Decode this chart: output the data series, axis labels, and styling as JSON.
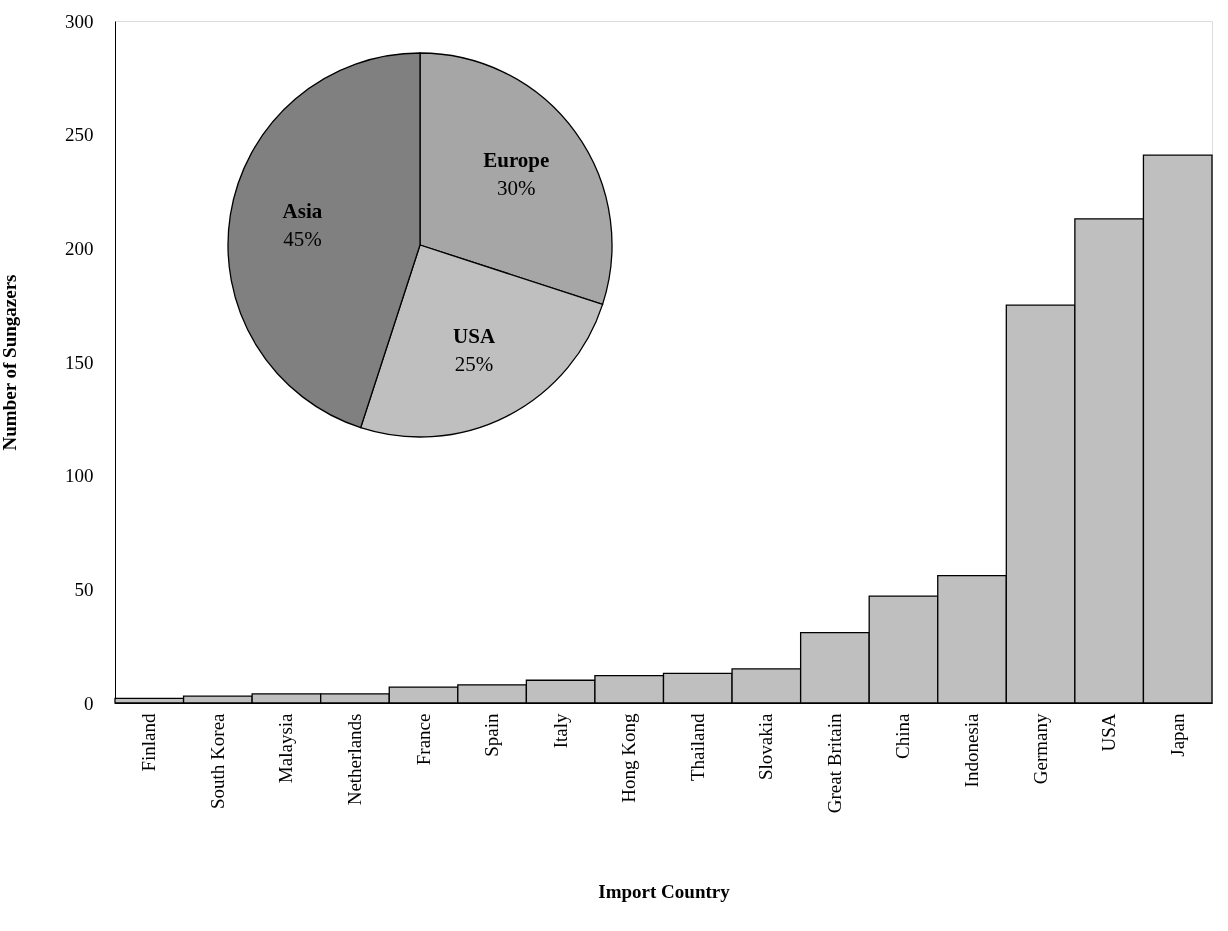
{
  "chart_data": [
    {
      "type": "bar",
      "xlabel": "Import Country",
      "ylabel": "Number of Sungazers",
      "categories": [
        "Finland",
        "South Korea",
        "Malaysia",
        "Netherlands",
        "France",
        "Spain",
        "Italy",
        "Hong Kong",
        "Thailand",
        "Slovakia",
        "Great Britain",
        "China",
        "Indonesia",
        "Germany",
        "USA",
        "Japan"
      ],
      "values": [
        2,
        3,
        4,
        4,
        7,
        8,
        10,
        12,
        13,
        15,
        31,
        47,
        56,
        175,
        213,
        241
      ],
      "color": "#bfbfbf",
      "ylim": [
        0,
        300
      ],
      "yticks": [
        0,
        50,
        100,
        150,
        200,
        250,
        300
      ],
      "grid": false
    },
    {
      "type": "pie",
      "categories": [
        "Europe",
        "USA",
        "Asia"
      ],
      "values": [
        30,
        25,
        45
      ],
      "colors": [
        "#a6a6a6",
        "#bfbfbf",
        "#808080"
      ],
      "value_labels": [
        "30%",
        "25%",
        "45%"
      ]
    }
  ]
}
